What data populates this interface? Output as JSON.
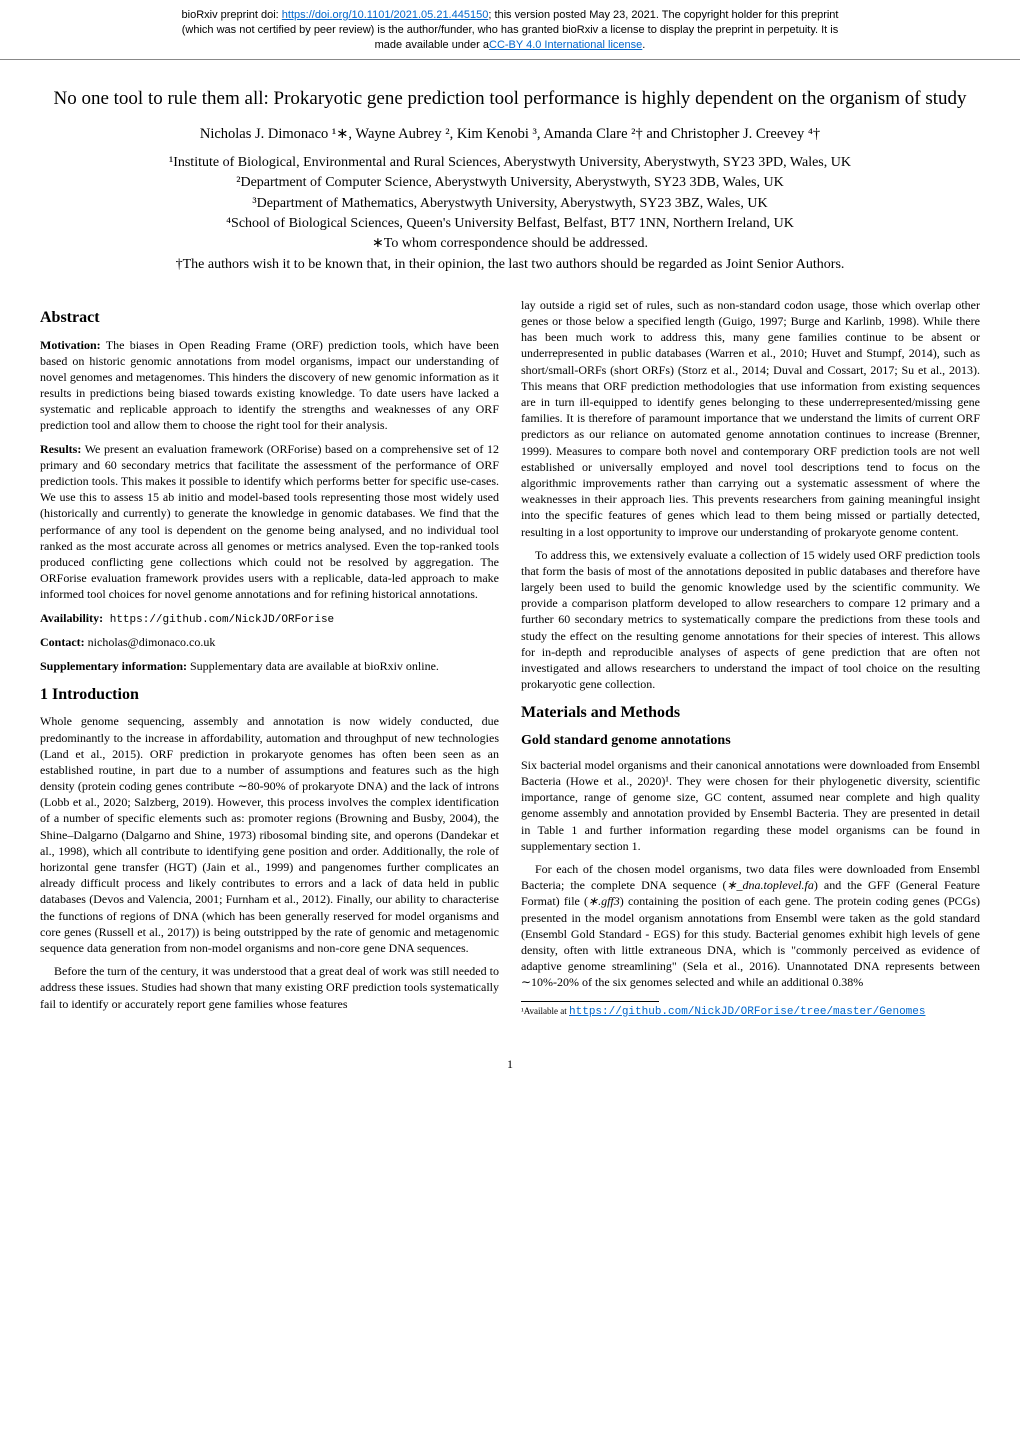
{
  "preprint": {
    "line1_pre": "bioRxiv preprint doi: ",
    "doi_url": "https://doi.org/10.1101/2021.05.21.445150",
    "line1_post": "; this version posted May 23, 2021. The copyright holder for this preprint",
    "line2": "(which was not certified by peer review) is the author/funder, who has granted bioRxiv a license to display the preprint in perpetuity. It is",
    "line3_pre": "made available under a",
    "license_text": "CC-BY 4.0 International license",
    "line3_post": "."
  },
  "title": "No one tool to rule them all: Prokaryotic gene prediction tool performance is highly dependent on the organism of study",
  "authors": "Nicholas J. Dimonaco ¹∗, Wayne Aubrey ², Kim Kenobi ³, Amanda Clare ²† and Christopher J. Creevey ⁴†",
  "affiliations": {
    "a1": "¹Institute of Biological, Environmental and Rural Sciences, Aberystwyth University, Aberystwyth, SY23 3PD, Wales, UK",
    "a2": "²Department of Computer Science, Aberystwyth University, Aberystwyth, SY23 3DB, Wales, UK",
    "a3": "³Department of Mathematics, Aberystwyth University, Aberystwyth, SY23 3BZ, Wales, UK",
    "a4": "⁴School of Biological Sciences, Queen's University Belfast, Belfast, BT7 1NN, Northern Ireland, UK",
    "corr": "∗To whom correspondence should be addressed.",
    "joint": "†The authors wish it to be known that, in their opinion, the last two authors should be regarded as Joint Senior Authors."
  },
  "abstract": {
    "heading": "Abstract",
    "motivation_label": "Motivation:",
    "motivation": " The biases in Open Reading Frame (ORF) prediction tools, which have been based on historic genomic annotations from model organisms, impact our understanding of novel genomes and metagenomes. This hinders the discovery of new genomic information as it results in predictions being biased towards existing knowledge. To date users have lacked a systematic and replicable approach to identify the strengths and weaknesses of any ORF prediction tool and allow them to choose the right tool for their analysis.",
    "results_label": "Results:",
    "results": " We present an evaluation framework (ORForise) based on a comprehensive set of 12 primary and 60 secondary metrics that facilitate the assessment of the performance of ORF prediction tools. This makes it possible to identify which performs better for specific use-cases. We use this to assess 15 ab initio and model-based tools representing those most widely used (historically and currently) to generate the knowledge in genomic databases. We find that the performance of any tool is dependent on the genome being analysed, and no individual tool ranked as the most accurate across all genomes or metrics analysed. Even the top-ranked tools produced conflicting gene collections which could not be resolved by aggregation. The ORForise evaluation framework provides users with a replicable, data-led approach to make informed tool choices for novel genome annotations and for refining historical annotations.",
    "availability_label": "Availability:",
    "availability": " https://github.com/NickJD/ORForise",
    "contact_label": "Contact:",
    "contact": " nicholas@dimonaco.co.uk",
    "supp_label": "Supplementary information:",
    "supp": " Supplementary data are available at bioRxiv online."
  },
  "intro": {
    "heading": "1   Introduction",
    "p1": "Whole genome sequencing, assembly and annotation is now widely conducted, due predominantly to the increase in affordability, automation and throughput of new technologies (Land et al., 2015). ORF prediction in prokaryote genomes has often been seen as an established routine, in part due to a number of assumptions and features such as the high density (protein coding genes contribute ∼80-90% of prokaryote DNA) and the lack of introns (Lobb et al., 2020; Salzberg, 2019). However, this process involves the complex identification of a number of specific elements such as: promoter regions (Browning and Busby, 2004), the Shine–Dalgarno (Dalgarno and Shine, 1973) ribosomal binding site, and operons (Dandekar et al., 1998), which all contribute to identifying gene position and order. Additionally, the role of horizontal gene transfer (HGT) (Jain et al., 1999) and pangenomes further complicates an already difficult process and likely contributes to errors and a lack of data held in public databases (Devos and Valencia, 2001; Furnham et al., 2012). Finally, our ability to characterise the functions of regions of DNA (which has been generally reserved for model organisms and core genes (Russell et al., 2017)) is being outstripped by the rate of genomic and metagenomic sequence data generation from non-model organisms and non-core gene DNA sequences.",
    "p2": "Before the turn of the century, it was understood that a great deal of work was still needed to address these issues. Studies had shown that many existing ORF prediction tools systematically fail to identify or accurately report gene families whose features"
  },
  "col2": {
    "p1": "lay outside a rigid set of rules, such as non-standard codon usage, those which overlap other genes or those below a specified length (Guigo, 1997; Burge and Karlinb, 1998). While there has been much work to address this, many gene families continue to be absent or underrepresented in public databases (Warren et al., 2010; Huvet and Stumpf, 2014), such as short/small-ORFs (short ORFs) (Storz et al., 2014; Duval and Cossart, 2017; Su et al., 2013). This means that ORF prediction methodologies that use information from existing sequences are in turn ill-equipped to identify genes belonging to these underrepresented/missing gene families. It is therefore of paramount importance that we understand the limits of current ORF predictors as our reliance on automated genome annotation continues to increase (Brenner, 1999). Measures to compare both novel and contemporary ORF prediction tools are not well established or universally employed and novel tool descriptions tend to focus on the algorithmic improvements rather than carrying out a systematic assessment of where the weaknesses in their approach lies. This prevents researchers from gaining meaningful insight into the specific features of genes which lead to them being missed or partially detected, resulting in a lost opportunity to improve our understanding of prokaryote genome content.",
    "p2": "To address this, we extensively evaluate a collection of 15 widely used ORF prediction tools that form the basis of most of the annotations deposited in public databases and therefore have largely been used to build the genomic knowledge used by the scientific community. We provide a comparison platform developed to allow researchers to compare 12 primary and a further 60 secondary metrics to systematically compare the predictions from these tools and study the effect on the resulting genome annotations for their species of interest. This allows for in-depth and reproducible analyses of aspects of gene prediction that are often not investigated and allows researchers to understand the impact of tool choice on the resulting prokaryotic gene collection."
  },
  "methods": {
    "heading": "Materials and Methods",
    "sub1": "Gold standard genome annotations",
    "p1": "Six bacterial model organisms and their canonical annotations were downloaded from Ensembl Bacteria (Howe et al., 2020)¹. They were chosen for their phylogenetic diversity, scientific importance, range of genome size, GC content, assumed near complete and high quality genome assembly and annotation provided by Ensembl Bacteria. They are presented in detail in Table 1 and further information regarding these model organisms can be found in supplementary section 1.",
    "p2a": "For each of the chosen model organisms, two data files were downloaded from Ensembl Bacteria; the complete DNA sequence (",
    "p2_file1": "∗_dna.toplevel.fa",
    "p2b": ") and the GFF (General Feature Format) file (",
    "p2_file2": "∗.gff3",
    "p2c": ") containing the position of each gene. The protein coding genes (PCGs) presented in the model organism annotations from Ensembl were taken as the gold standard (Ensembl Gold Standard - EGS) for this study. Bacterial genomes exhibit high levels of gene density, often with little extraneous DNA, which is \"commonly perceived as evidence of adaptive genome streamlining\" (Sela et al., 2016). Unannotated DNA represents between ∼10%-20% of the six genomes selected and while an additional 0.38%"
  },
  "footnote": {
    "marker": "¹",
    "text": "Available at ",
    "url": "https://github.com/NickJD/ORForise/tree/master/Genomes"
  },
  "page": "1"
}
